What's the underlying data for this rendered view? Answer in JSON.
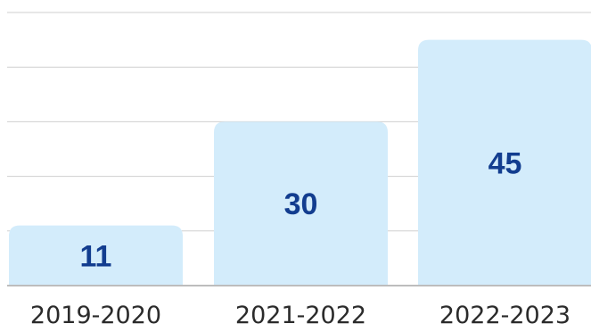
{
  "chart_data": {
    "type": "bar",
    "categories": [
      "2019-2020",
      "2021-2022",
      "2022-2023"
    ],
    "values": [
      11,
      30,
      45
    ],
    "title": "",
    "xlabel": "",
    "ylabel": "",
    "ylim": [
      0,
      50
    ],
    "grid": true,
    "legend": "none",
    "colors": {
      "bar": "#d3ecfb",
      "value_label": "#123d8f",
      "tick_label": "#2b2b2b",
      "grid": "#cfcfcf",
      "axis": "#bdbdbd"
    }
  }
}
